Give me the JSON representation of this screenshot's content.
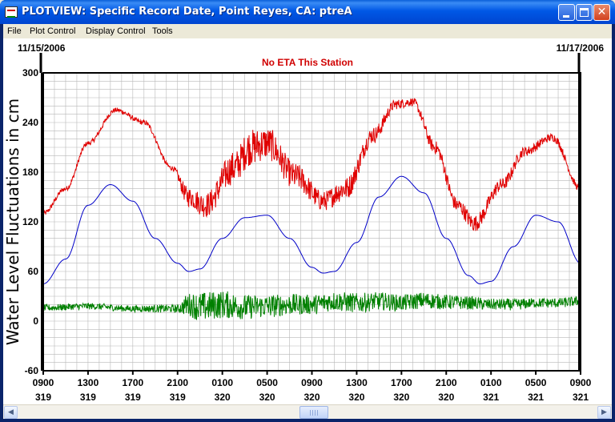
{
  "window": {
    "title": "PLOTVIEW: Specific Record Date, Point Reyes, CA: ptreA",
    "buttons": {
      "minimize": "minimize",
      "maximize": "maximize",
      "close": "✕"
    }
  },
  "menu": {
    "items": [
      "File",
      "Plot Control",
      "Display Control",
      "Tools"
    ]
  },
  "plot": {
    "start_date": "11/15/2006",
    "end_date": "11/17/2006",
    "notice": "No ETA This Station"
  },
  "colors": {
    "observed": "#E00000",
    "predicted": "#0000C8",
    "difference": "#008000",
    "grid": "#B8B8B8",
    "notice": "#D00000"
  },
  "chart_data": {
    "type": "line",
    "ylabel": "Water Level Fluctuations in cm",
    "ylim": [
      -60,
      300
    ],
    "yticks": [
      -60,
      0,
      60,
      120,
      180,
      240,
      300
    ],
    "xlim": [
      0,
      48
    ],
    "xticks": [
      {
        "x": 0,
        "hour": "0900",
        "day": "319"
      },
      {
        "x": 4,
        "hour": "1300",
        "day": "319"
      },
      {
        "x": 8,
        "hour": "1700",
        "day": "319"
      },
      {
        "x": 12,
        "hour": "2100",
        "day": "319"
      },
      {
        "x": 16,
        "hour": "0100",
        "day": "320"
      },
      {
        "x": 20,
        "hour": "0500",
        "day": "320"
      },
      {
        "x": 24,
        "hour": "0900",
        "day": "320"
      },
      {
        "x": 28,
        "hour": "1300",
        "day": "320"
      },
      {
        "x": 32,
        "hour": "1700",
        "day": "320"
      },
      {
        "x": 36,
        "hour": "2100",
        "day": "320"
      },
      {
        "x": 40,
        "hour": "0100",
        "day": "321"
      },
      {
        "x": 44,
        "hour": "0500",
        "day": "321"
      },
      {
        "x": 48,
        "hour": "0900",
        "day": "321"
      }
    ],
    "grid": true,
    "series": [
      {
        "key": "observed",
        "x": [
          0,
          2,
          4,
          6.5,
          9,
          11.5,
          13,
          14.5,
          17,
          18.5,
          20,
          22.5,
          25,
          27,
          29.5,
          31.5,
          33,
          35,
          37,
          38.5,
          41,
          43,
          45.5,
          48
        ],
        "y": [
          130,
          160,
          215,
          255,
          240,
          185,
          150,
          140,
          185,
          210,
          215,
          175,
          145,
          160,
          225,
          262,
          265,
          210,
          140,
          118,
          165,
          205,
          222,
          160
        ],
        "noise": [
          3,
          3,
          3,
          3,
          3,
          3,
          12,
          15,
          20,
          22,
          20,
          16,
          12,
          14,
          10,
          6,
          5,
          8,
          9,
          10,
          8,
          6,
          5,
          4
        ]
      },
      {
        "key": "predicted",
        "x": [
          0,
          2,
          4,
          6,
          8,
          10,
          12,
          13,
          14,
          16,
          18,
          20,
          22,
          24,
          25,
          26,
          28,
          30,
          32,
          34,
          36,
          38,
          39,
          40,
          42,
          44,
          46,
          48
        ],
        "y": [
          45,
          75,
          140,
          165,
          145,
          100,
          70,
          60,
          63,
          100,
          125,
          128,
          100,
          65,
          58,
          60,
          95,
          150,
          175,
          155,
          100,
          55,
          45,
          48,
          90,
          128,
          120,
          70
        ],
        "noise": []
      },
      {
        "key": "difference",
        "x": [
          0,
          4,
          8,
          12,
          13,
          14,
          16,
          18,
          20,
          22,
          24,
          26,
          28,
          30,
          32,
          34,
          36,
          38,
          40,
          42,
          44,
          46,
          48
        ],
        "y": [
          16,
          18,
          15,
          15,
          20,
          17,
          20,
          17,
          18,
          20,
          20,
          24,
          22,
          24,
          22,
          25,
          23,
          22,
          20,
          20,
          22,
          22,
          24
        ],
        "noise": [
          4,
          4,
          4,
          5,
          14,
          18,
          17,
          15,
          14,
          13,
          12,
          12,
          12,
          11,
          10,
          10,
          9,
          8,
          7,
          7,
          6,
          6,
          6
        ]
      }
    ]
  }
}
